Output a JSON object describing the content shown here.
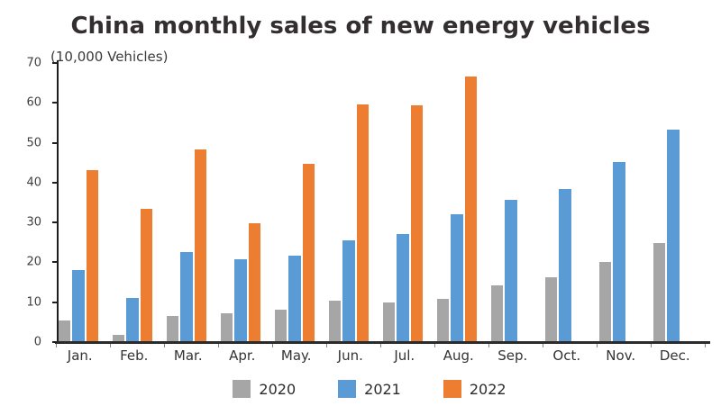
{
  "chart_data": {
    "type": "bar",
    "title": "China monthly sales of new energy vehicles",
    "unit_label": "(10,000 Vehicles)",
    "xlabel": "",
    "ylabel": "(10,000 Vehicles)",
    "categories": [
      "Jan.",
      "Feb.",
      "Mar.",
      "Apr.",
      "May.",
      "Jun.",
      "Jul.",
      "Aug.",
      "Sep.",
      "Oct.",
      "Nov.",
      "Dec."
    ],
    "series": [
      {
        "name": "2020",
        "color": "#a6a6a6",
        "values": [
          5.4,
          1.7,
          6.6,
          7.3,
          8.2,
          10.3,
          9.9,
          10.9,
          14.2,
          16.2,
          20.0,
          24.8
        ]
      },
      {
        "name": "2021",
        "color": "#5b9bd5",
        "values": [
          18.0,
          11.0,
          22.6,
          20.8,
          21.7,
          25.6,
          27.1,
          32.1,
          35.7,
          38.5,
          45.1,
          53.2
        ]
      },
      {
        "name": "2022",
        "color": "#ed7d31",
        "values": [
          43.2,
          33.4,
          48.4,
          29.9,
          44.7,
          59.6,
          59.3,
          66.6,
          null,
          null,
          null,
          null
        ]
      }
    ],
    "ylim": [
      0,
      70
    ],
    "yticks": [
      0,
      10,
      20,
      30,
      40,
      50,
      60,
      70
    ],
    "grid": false,
    "legend_position": "bottom"
  }
}
